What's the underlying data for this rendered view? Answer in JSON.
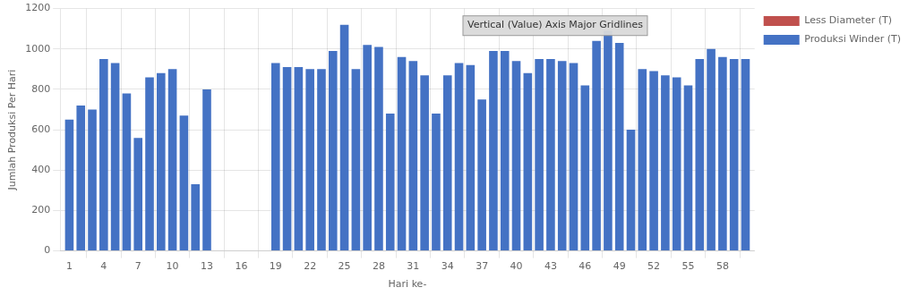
{
  "chart_data": {
    "type": "bar",
    "x": [
      1,
      2,
      3,
      4,
      5,
      6,
      7,
      8,
      9,
      10,
      11,
      12,
      13,
      14,
      15,
      16,
      17,
      18,
      19,
      20,
      21,
      22,
      23,
      24,
      25,
      26,
      27,
      28,
      29,
      30,
      31,
      32,
      33,
      34,
      35,
      36,
      37,
      38,
      39,
      40,
      41,
      42,
      43,
      44,
      45,
      46,
      47,
      48,
      49,
      50,
      51,
      52,
      53,
      54,
      55,
      56,
      57,
      58,
      59,
      60
    ],
    "series": [
      {
        "name": "Produksi Winder (T)",
        "color": "#4472C4",
        "values": [
          650,
          720,
          700,
          950,
          930,
          780,
          560,
          860,
          880,
          900,
          670,
          330,
          800,
          0,
          0,
          0,
          0,
          0,
          930,
          910,
          910,
          900,
          900,
          990,
          1120,
          900,
          1020,
          1010,
          680,
          960,
          940,
          870,
          680,
          870,
          930,
          920,
          750,
          990,
          990,
          940,
          880,
          950,
          950,
          940,
          930,
          820,
          1040,
          1090,
          1030,
          600,
          900,
          890,
          870,
          860,
          820,
          950,
          1000,
          960,
          950,
          950
        ]
      },
      {
        "name": "Less Diameter (T)",
        "color": "#C0504D",
        "values": [
          0,
          0,
          0,
          0,
          0,
          0,
          0,
          0,
          0,
          0,
          0,
          0,
          0,
          0,
          0,
          0,
          0,
          0,
          0,
          0,
          0,
          0,
          0,
          0,
          0,
          0,
          0,
          0,
          0,
          0,
          0,
          0,
          0,
          0,
          0,
          0,
          0,
          0,
          0,
          0,
          0,
          0,
          0,
          0,
          0,
          0,
          0,
          0,
          0,
          0,
          0,
          0,
          0,
          0,
          0,
          0,
          0,
          0,
          0,
          0
        ]
      }
    ],
    "x_label": "Hari ke-",
    "y_label": "Jumlah Produksi Per Hari",
    "xlim": [
      0.2,
      60.8
    ],
    "xticks": [
      1,
      4,
      7,
      10,
      13,
      16,
      19,
      22,
      25,
      28,
      31,
      34,
      37,
      40,
      43,
      46,
      49,
      52,
      55,
      58
    ],
    "ylim": [
      0,
      1200
    ],
    "yticks": [
      0,
      200,
      400,
      600,
      800,
      1000,
      1200
    ],
    "annotations": [
      "Vertical (Value) Axis Major Gridlines"
    ],
    "grid": true,
    "legend": "right"
  }
}
